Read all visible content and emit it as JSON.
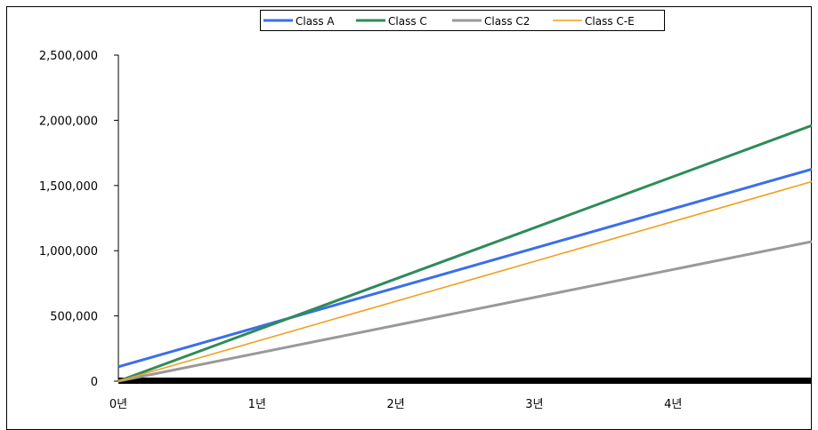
{
  "chart_data": {
    "type": "line",
    "title": "",
    "xlabel": "",
    "ylabel": "",
    "x_ticks": [
      "0년",
      "1년",
      "2년",
      "3년",
      "4년"
    ],
    "y_ticks": [
      "0",
      "500,000",
      "1,000,000",
      "1,500,000",
      "2,000,000",
      "2,500,000"
    ],
    "xlim": [
      0,
      5
    ],
    "ylim": [
      0,
      2500000
    ],
    "grid": false,
    "legend_position": "top",
    "x": [
      0,
      5
    ],
    "series": [
      {
        "name": "Class A",
        "color": "#3a6fe8",
        "values": [
          110000,
          1625000
        ]
      },
      {
        "name": "Class C",
        "color": "#2e8b57",
        "values": [
          0,
          1960000
        ]
      },
      {
        "name": "Class C2",
        "color": "#999999",
        "values": [
          0,
          1070000
        ]
      },
      {
        "name": "Class C-E",
        "color": "#f0a020",
        "values": [
          0,
          1530000
        ]
      }
    ]
  }
}
